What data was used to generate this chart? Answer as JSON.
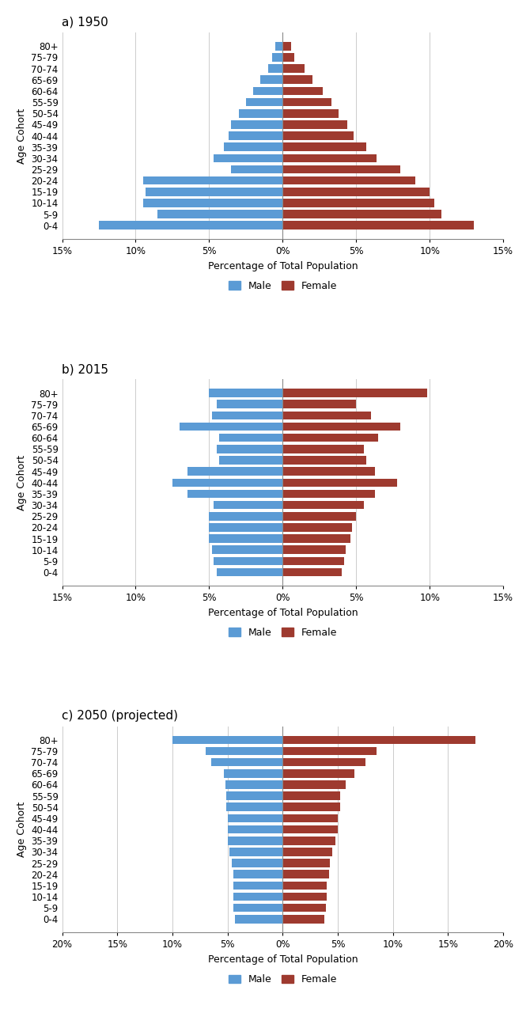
{
  "age_groups": [
    "0-4",
    "5-9",
    "10-14",
    "15-19",
    "20-24",
    "25-29",
    "30-34",
    "35-39",
    "40-44",
    "45-49",
    "50-54",
    "55-59",
    "60-64",
    "65-69",
    "70-74",
    "75-79",
    "80+"
  ],
  "chart_1950": {
    "title": "a) 1950",
    "male": [
      12.5,
      8.5,
      9.5,
      9.3,
      9.5,
      3.5,
      4.7,
      4.0,
      3.7,
      3.5,
      3.0,
      2.5,
      2.0,
      1.5,
      1.0,
      0.7,
      0.5
    ],
    "female": [
      13.0,
      10.8,
      10.3,
      10.0,
      9.0,
      8.0,
      6.4,
      5.7,
      4.8,
      4.4,
      3.8,
      3.3,
      2.7,
      2.0,
      1.5,
      0.8,
      0.6
    ],
    "xlim": 15,
    "xticks": [
      -15,
      -10,
      -5,
      0,
      5,
      10,
      15
    ],
    "xticklabels": [
      "15%",
      "10%",
      "5%",
      "0%",
      "5%",
      "10%",
      "15%"
    ]
  },
  "chart_2015": {
    "title": "b) 2015",
    "male": [
      4.5,
      4.7,
      4.8,
      5.0,
      5.0,
      5.0,
      4.7,
      6.5,
      7.5,
      6.5,
      4.3,
      4.5,
      4.3,
      7.0,
      4.8,
      4.5,
      5.0
    ],
    "female": [
      4.0,
      4.2,
      4.3,
      4.6,
      4.7,
      5.0,
      5.5,
      6.3,
      7.8,
      6.3,
      5.7,
      5.5,
      6.5,
      8.0,
      6.0,
      5.0,
      9.8
    ],
    "xlim": 15,
    "xticks": [
      -15,
      -10,
      -5,
      0,
      5,
      10,
      15
    ],
    "xticklabels": [
      "15%",
      "10%",
      "5%",
      "0%",
      "5%",
      "10%",
      "15%"
    ]
  },
  "chart_2050": {
    "title": "c) 2050 (projected)",
    "male": [
      4.3,
      4.5,
      4.5,
      4.5,
      4.5,
      4.6,
      4.8,
      5.0,
      5.0,
      5.0,
      5.1,
      5.1,
      5.2,
      5.3,
      6.5,
      7.0,
      10.0
    ],
    "female": [
      3.8,
      3.9,
      4.0,
      4.0,
      4.2,
      4.3,
      4.5,
      4.8,
      5.0,
      5.0,
      5.2,
      5.2,
      5.7,
      6.5,
      7.5,
      8.5,
      17.5
    ],
    "xlim": 20,
    "xticks": [
      -20,
      -15,
      -10,
      -5,
      0,
      5,
      10,
      15,
      20
    ],
    "xticklabels": [
      "20%",
      "15%",
      "10%",
      "5%",
      "0%",
      "5%",
      "10%",
      "15%",
      "20%"
    ]
  },
  "male_color": "#5B9BD5",
  "female_color": "#9E3A2F",
  "xlabel": "Percentage of Total Population",
  "ylabel": "Age Cohort",
  "bar_height": 0.75,
  "title_fontsize": 11,
  "axis_fontsize": 9,
  "tick_fontsize": 8.5,
  "legend_fontsize": 9,
  "background_color": "#FFFFFF",
  "grid_color": "#CCCCCC"
}
